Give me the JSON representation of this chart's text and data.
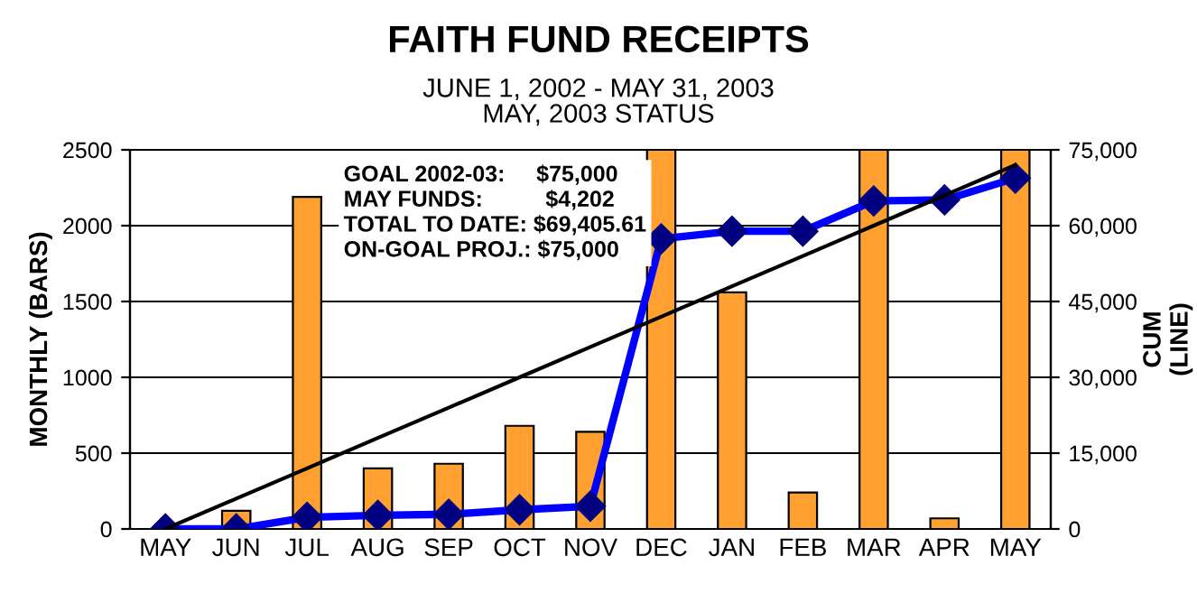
{
  "chart_data": {
    "type": "bar",
    "title": "FAITH FUND RECEIPTS",
    "subtitle": "JUNE 1, 2002 - MAY 31, 2003\nMAY, 2003 STATUS",
    "ylabel": "MONTHLY (BARS)",
    "y2label": "CUM\n(LINE)",
    "categories": [
      "MAY",
      "JUN",
      "JUL",
      "AUG",
      "SEP",
      "OCT",
      "NOV",
      "DEC",
      "JAN",
      "FEB",
      "MAR",
      "APR",
      "MAY"
    ],
    "series": [
      {
        "color": "#ffa030",
        "values": [
          0,
          120,
          2190,
          400,
          430,
          680,
          640,
          2500,
          1560,
          240,
          2500,
          70,
          2500
        ]
      },
      {
        "type": "line",
        "axis": "y2",
        "color": "#0000ff",
        "marker": "diamond",
        "values": [
          0,
          0,
          2300,
          2700,
          2900,
          3800,
          4500,
          57400,
          58900,
          58900,
          64900,
          65100,
          69400
        ]
      },
      {
        "type": "line",
        "axis": "y2",
        "color": "#000000",
        "values": [
          0,
          6000,
          12000,
          18000,
          24000,
          30000,
          36000,
          42000,
          48000,
          54000,
          60000,
          66000,
          72000
        ]
      }
    ],
    "ylim": [
      0,
      2500
    ],
    "yticks": [
      0,
      500,
      1000,
      1500,
      2000,
      2500
    ],
    "y2lim": [
      0,
      75000
    ],
    "y2ticks": [
      0,
      {
        "value": 15000,
        "label": "15,000"
      },
      {
        "value": 30000,
        "label": "30,000"
      },
      {
        "value": 45000,
        "label": "45,000"
      },
      {
        "value": 60000,
        "label": "60,000"
      },
      {
        "value": 75000,
        "label": "75,000"
      }
    ],
    "grid": "y",
    "legend": false,
    "annotations": [
      "GOAL 2002-03:     $75,000",
      "MAY FUNDS:          $4,202",
      "TOTAL TO DATE: $69,405.61",
      "ON-GOAL PROJ.: $75,000"
    ]
  }
}
